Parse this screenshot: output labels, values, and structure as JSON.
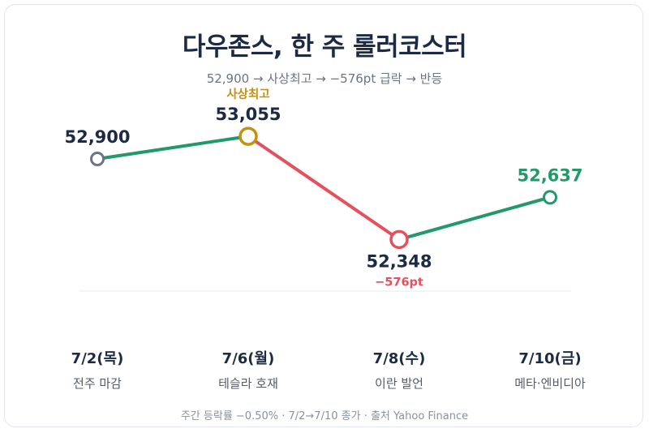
{
  "title": "다우존스, 한 주 롤러코스터",
  "subtitle": "52,900 → 사상최고 → −576pt 급락 → 반등",
  "footer": "주간 등락률 −0.50% · 7/2→7/10 종가 · 출처 Yahoo Finance",
  "colors": {
    "title": "#1c2a44",
    "up": "#23996a",
    "down": "#e4505c",
    "peak": "#c29013",
    "start": "#6c7384",
    "label": "#1c2a44",
    "sublabel": "#555c66"
  },
  "chart_data": {
    "type": "line",
    "ylim": [
      52000,
      53100
    ],
    "points": [
      {
        "date": "7/2(목)",
        "event": "전주 마감",
        "value": 52900,
        "label": "52,900",
        "marker": "start",
        "annotation": "",
        "annotation_color": ""
      },
      {
        "date": "7/6(월)",
        "event": "테슬라 호재",
        "value": 53055,
        "label": "53,055",
        "marker": "peak",
        "annotation": "사상최고",
        "annotation_color": "#c29013"
      },
      {
        "date": "7/8(수)",
        "event": "이란 발언",
        "value": 52348,
        "label": "52,348",
        "marker": "down",
        "annotation": "−576pt",
        "annotation_color": "#e4505c"
      },
      {
        "date": "7/10(금)",
        "event": "메타·엔비디아",
        "value": 52637,
        "label": "52,637",
        "marker": "up",
        "annotation": "",
        "annotation_color": ""
      }
    ],
    "segments": [
      {
        "from": 0,
        "to": 1,
        "color": "#23996a"
      },
      {
        "from": 1,
        "to": 2,
        "color": "#e4505c"
      },
      {
        "from": 2,
        "to": 3,
        "color": "#23996a"
      }
    ]
  }
}
